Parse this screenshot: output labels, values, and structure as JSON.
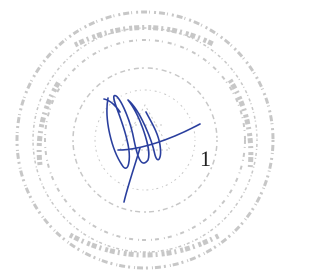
{
  "page_number": "1"
}
